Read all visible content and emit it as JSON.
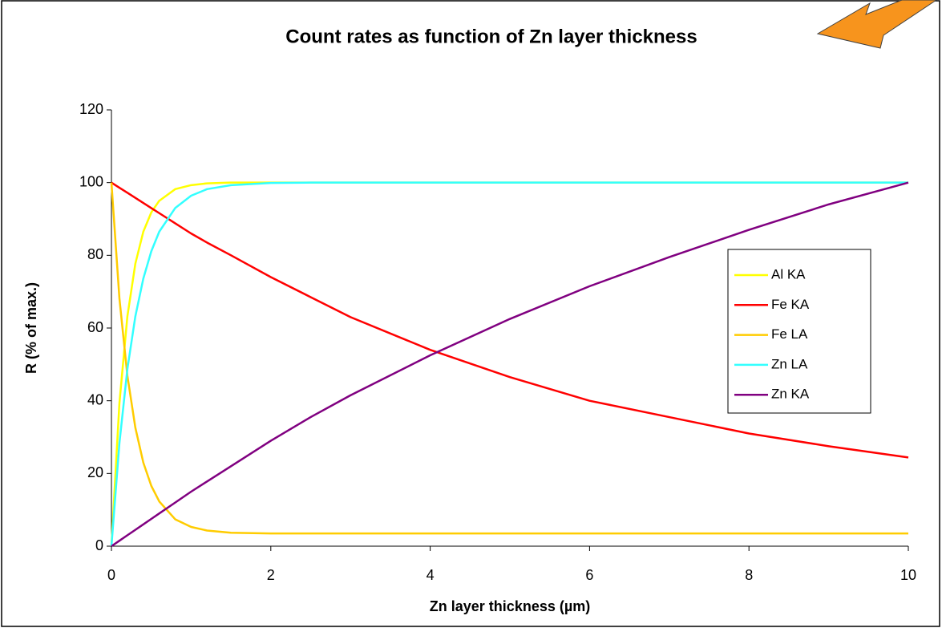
{
  "chart_data": {
    "type": "line",
    "title": "Count rates as function of Zn layer thickness",
    "x_label": "Zn layer thickness (µm)",
    "y_label": "R (% of max.)",
    "x": [
      0,
      0.1,
      0.2,
      0.3,
      0.4,
      0.5,
      0.6,
      0.8,
      1,
      1.2,
      1.5,
      2,
      2.5,
      3,
      4,
      5,
      6,
      7,
      8,
      9,
      10
    ],
    "series": [
      {
        "name": "Al KA",
        "color": "#ffff00",
        "values": [
          0,
          39.3,
          63.2,
          77.7,
          86.5,
          91.8,
          95,
          98.2,
          99.3,
          99.8,
          100,
          100,
          100,
          100,
          100,
          100,
          100,
          100,
          100,
          100,
          100
        ]
      },
      {
        "name": "Fe KA",
        "color": "#ff0000",
        "values": [
          100,
          98.6,
          97.2,
          95.8,
          94.4,
          93,
          91.6,
          88.8,
          86,
          83.5,
          80,
          74,
          68.5,
          63,
          54,
          46.5,
          40,
          35.5,
          31,
          27.5,
          24.4
        ]
      },
      {
        "name": "Fe LA",
        "color": "#ffcc00",
        "values": [
          100,
          68.2,
          46.9,
          32.6,
          23,
          16.6,
          12.3,
          7.4,
          5.3,
          4.3,
          3.7,
          3.5,
          3.5,
          3.5,
          3.5,
          3.5,
          3.5,
          3.5,
          3.5,
          3.5,
          3.5
        ]
      },
      {
        "name": "Zn LA",
        "color": "#33ffff",
        "values": [
          0,
          28.3,
          48.7,
          63.2,
          73.6,
          81.1,
          86.5,
          93,
          96.4,
          98.2,
          99.3,
          99.9,
          100,
          100,
          100,
          100,
          100,
          100,
          100,
          100,
          100
        ]
      },
      {
        "name": "Zn KA",
        "color": "#800080",
        "values": [
          0,
          1.5,
          3,
          4.5,
          6,
          7.5,
          9,
          12,
          15,
          17.8,
          22,
          29,
          35.5,
          41.5,
          52.5,
          62.5,
          71.5,
          79.5,
          87,
          94,
          100
        ]
      }
    ],
    "xlim": [
      0,
      10
    ],
    "xticks": [
      0,
      2,
      4,
      6,
      8,
      10
    ],
    "ylim": [
      0,
      120
    ],
    "yticks": [
      0,
      20,
      40,
      60,
      80,
      100,
      120
    ],
    "grid": false,
    "legend": "right"
  }
}
